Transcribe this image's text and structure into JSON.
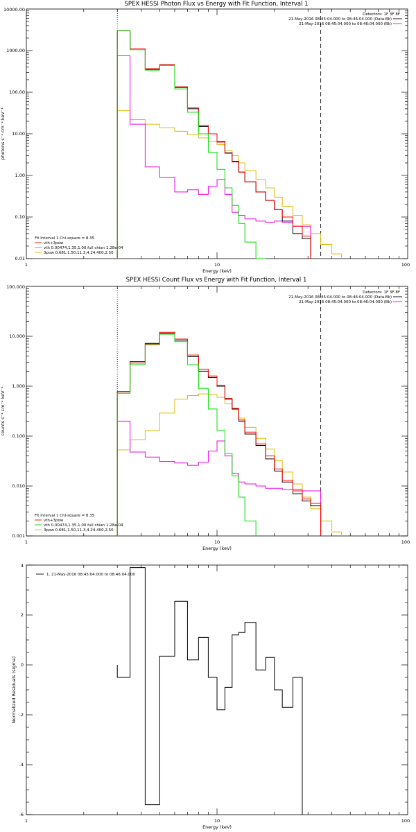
{
  "colors": {
    "data": "#000000",
    "total": "#ff0000",
    "thermal": "#00dd00",
    "power": "#ddbb00",
    "background": "#ee00ee"
  },
  "chart_data": [
    {
      "type": "line",
      "title": "SPEX HESSI Photon Flux vs Energy with Fit Function, Interval 1",
      "xlabel": "Energy (keV)",
      "ylabel": "photons s⁻¹ cm⁻² keV⁻¹",
      "xscale": "log",
      "yscale": "log",
      "xlim": [
        1,
        100
      ],
      "ylim": [
        0.01,
        10000
      ],
      "xtick_labels": [
        "1",
        "10",
        "100"
      ],
      "ytick_labels": [
        "0.01",
        "0.10",
        "1.00",
        "10.00",
        "100.00",
        "1000.00",
        "10000.00"
      ],
      "legend_right": [
        "Detectors: 1F 3F 8F",
        "21-May-2016 08:45:04.000 to 08:46:04.000 (Data-Bk)",
        "21-May-2016 08:45:04.000 to 08:46:04.000 (Bk)"
      ],
      "legend_left": [
        "Fit Interval 1   Chi-square = 8.35",
        "vth+3pow",
        "vth 0.00474,1.35,1.00  full chian 1.28e-04",
        "3pow 0.681,1.50,11.3,4.24,400,2.50"
      ],
      "vlines": [
        3,
        35
      ],
      "edges": [
        3,
        3.5,
        4.2,
        5,
        6,
        7,
        8,
        9,
        10,
        11,
        12,
        13,
        14,
        16,
        18,
        20,
        22,
        25,
        28,
        31,
        35,
        40,
        45
      ],
      "series": [
        {
          "name": "Data-Bk",
          "color_key": "data",
          "values": [
            3000,
            1100,
            350,
            450,
            130,
            40,
            15,
            10,
            6.5,
            3.5,
            2.2,
            1.2,
            0.7,
            0.4,
            0.25,
            0.15,
            0.08,
            0.04,
            0.03
          ]
        },
        {
          "name": "vth+3pow",
          "color_key": "total",
          "values": [
            3000,
            1100,
            370,
            460,
            135,
            42,
            16,
            10,
            6.3,
            3.4,
            2.1,
            1.2,
            0.7,
            0.4,
            0.25,
            0.15,
            0.1,
            0.06,
            0.035
          ]
        },
        {
          "name": "vth",
          "color_key": "thermal",
          "values": [
            3000,
            1050,
            340,
            440,
            120,
            33,
            10,
            3.6,
            1.4,
            0.5,
            0.19,
            0.07,
            0.025,
            0.01
          ]
        },
        {
          "name": "3pow",
          "color_key": "power",
          "values": [
            36,
            22,
            17,
            14,
            11.5,
            9.5,
            8,
            6.5,
            5.5,
            4,
            3,
            2,
            1.3,
            0.8,
            0.5,
            0.3,
            0.18,
            0.11,
            0.065,
            0.04,
            0.022,
            0.013
          ]
        },
        {
          "name": "Bk",
          "color_key": "background",
          "values": [
            750,
            17,
            1.6,
            0.9,
            0.4,
            0.45,
            0.35,
            0.55,
            0.8,
            0.35,
            0.13,
            0.11,
            0.09,
            0.08,
            0.075,
            0.08,
            0.075,
            0.06,
            0.06
          ]
        }
      ]
    },
    {
      "type": "line",
      "title": "SPEX HESSI Count Flux vs Energy with Fit Function, Interval 1",
      "xlabel": "Energy (keV)",
      "ylabel": "counts s⁻¹ cm⁻² keV⁻¹",
      "xscale": "log",
      "yscale": "log",
      "xlim": [
        1,
        100
      ],
      "ylim": [
        0.001,
        100
      ],
      "xtick_labels": [
        "1",
        "10",
        "100"
      ],
      "ytick_labels": [
        "0.001",
        "0.010",
        "0.100",
        "1.000",
        "10.000",
        "100.000"
      ],
      "legend_right": [
        "Detectors: 1F 3F 8F",
        "21-May-2016 08:45:04.000 to 08:46:04.000 (Data-Bk)",
        "21-May-2016 08:45:04.000 to 08:46:04.000 (Bk)"
      ],
      "legend_left": [
        "Fit Interval 1   Chi-square = 8.35",
        "vth+3pow",
        "vth 0.00474,1.35,1.00  full chian 1.28e-04",
        "3pow 0.681,1.50,11.3,4.24,400,2.50"
      ],
      "vlines": [
        3,
        35
      ],
      "edges": [
        3,
        3.5,
        4.2,
        5,
        6,
        7,
        8,
        9,
        10,
        11,
        12,
        13,
        14,
        16,
        18,
        20,
        22,
        25,
        28,
        31,
        35,
        40,
        45
      ],
      "series": [
        {
          "name": "Data-Bk",
          "color_key": "data",
          "values": [
            0.78,
            3.1,
            7.2,
            11.5,
            8.4,
            3.9,
            2.0,
            1.5,
            1.0,
            0.55,
            0.35,
            0.2,
            0.11,
            0.065,
            0.035,
            0.02,
            0.012,
            0.007,
            0.005,
            0.004
          ]
        },
        {
          "name": "vth+3pow",
          "color_key": "total",
          "values": [
            0.77,
            2.9,
            7.0,
            12.0,
            8.8,
            4.2,
            2.2,
            1.6,
            1.05,
            0.57,
            0.36,
            0.21,
            0.12,
            0.07,
            0.04,
            0.022,
            0.013,
            0.008,
            0.0055,
            0.0045
          ]
        },
        {
          "name": "vth",
          "color_key": "thermal",
          "values": [
            0.72,
            2.7,
            6.7,
            11,
            7.8,
            2.7,
            0.9,
            0.35,
            0.13,
            0.045,
            0.016,
            0.006,
            0.002
          ]
        },
        {
          "name": "3pow",
          "color_key": "power",
          "values": [
            0.053,
            0.085,
            0.13,
            0.29,
            0.55,
            0.65,
            0.7,
            0.68,
            0.6,
            0.45,
            0.34,
            0.23,
            0.15,
            0.09,
            0.055,
            0.032,
            0.019,
            0.011,
            0.006,
            0.0035,
            0.002,
            0.0012
          ]
        },
        {
          "name": "Bk",
          "color_key": "background",
          "values": [
            0.2,
            0.048,
            0.038,
            0.031,
            0.029,
            0.026,
            0.03,
            0.05,
            0.08,
            0.04,
            0.018,
            0.012,
            0.011,
            0.01,
            0.009,
            0.009,
            0.0085,
            0.0085,
            0.008,
            0.008
          ]
        }
      ]
    },
    {
      "type": "line",
      "title": "",
      "xlabel": "Energy (keV)",
      "ylabel": "Normalized Residuals (sigma)",
      "xscale": "log",
      "xlim": [
        1,
        100
      ],
      "ylim": [
        -6,
        4
      ],
      "xtick_labels": [
        "1",
        "10",
        "100"
      ],
      "ytick_labels": [
        "-6",
        "-4",
        "-2",
        "0",
        "2",
        "4"
      ],
      "legend": [
        "1. 21-May-2016 08:45:04.000 to 08:46:04.000"
      ],
      "edges": [
        3,
        3.5,
        4.2,
        5,
        6,
        7,
        8,
        9,
        10,
        11,
        12,
        13,
        14,
        16,
        18,
        20,
        22,
        25,
        28,
        31,
        35
      ],
      "series": [
        {
          "name": "1. 21-May-2016 08:45:04.000 to 08:46:04.000",
          "color_key": "data",
          "values": [
            -0.5,
            3.9,
            -5.6,
            0.35,
            2.55,
            0.2,
            1.1,
            -0.5,
            -1.8,
            -0.9,
            1.2,
            1.3,
            1.7,
            -0.2,
            0.3,
            -1.0,
            -1.7,
            -0.5
          ]
        }
      ]
    }
  ]
}
